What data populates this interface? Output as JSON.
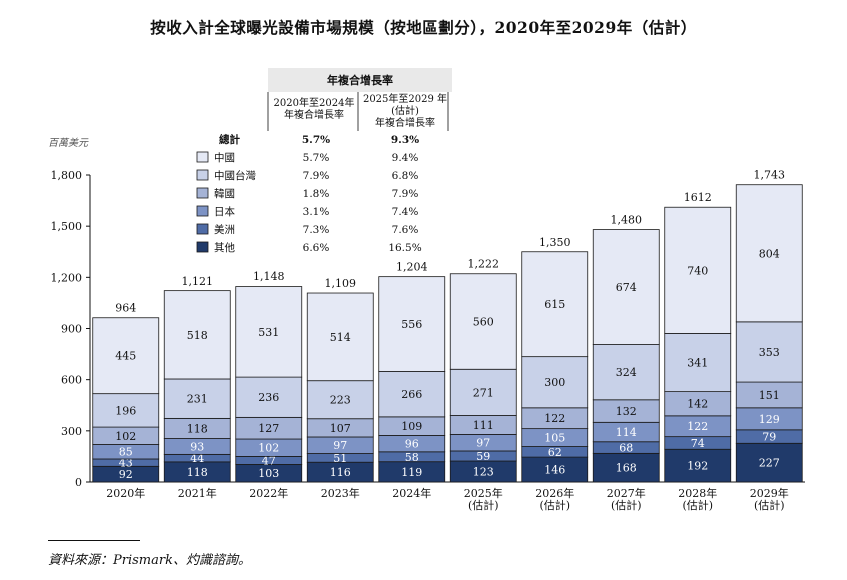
{
  "title": "按收入計全球曝光設備市場規模（按地區劃分），2020年至2029年（估計）",
  "source": "資料來源：Prismark、灼識諮詢。",
  "colors": {
    "china": "#e5e9f5",
    "taiwan": "#c8d1e8",
    "korea": "#a5b3d6",
    "japan": "#7d93c5",
    "usa": "#4f6ca6",
    "others": "#203a6a",
    "outline": "#1a1a1a",
    "light_text": "#ffffff",
    "dark_text": "#111111"
  },
  "chart_data": {
    "type": "bar",
    "stacked": true,
    "title": "按收入計全球曝光設備市場規模（按地區劃分），2020年至2029年（估計）",
    "unit_label": "百萬美元",
    "ylim": [
      0,
      1800
    ],
    "yticks": [
      "0",
      "300",
      "600",
      "900",
      "1,200",
      "1,500",
      "1,800"
    ],
    "ytick_values": [
      0,
      300,
      600,
      900,
      1200,
      1500,
      1800
    ],
    "categories": [
      [
        "2020年"
      ],
      [
        "2021年"
      ],
      [
        "2022年"
      ],
      [
        "2023年"
      ],
      [
        "2024年"
      ],
      [
        "2025年",
        "(估計)"
      ],
      [
        "2026年",
        "(估計)"
      ],
      [
        "2027年",
        "(估計)"
      ],
      [
        "2028年",
        "(估計)"
      ],
      [
        "2029年",
        "(估計)"
      ]
    ],
    "totals": [
      "964",
      "1,121",
      "1,148",
      "1,109",
      "1,204",
      "1,222",
      "1,350",
      "1,480",
      "1612",
      "1,743"
    ],
    "total_values": [
      964,
      1121,
      1148,
      1109,
      1204,
      1222,
      1350,
      1480,
      1612,
      1743
    ],
    "series": [
      {
        "key": "others",
        "name": "其他",
        "values": [
          92,
          118,
          103,
          116,
          119,
          123,
          146,
          168,
          192,
          227
        ]
      },
      {
        "key": "usa",
        "name": "美洲",
        "values": [
          43,
          44,
          47,
          51,
          58,
          59,
          62,
          68,
          74,
          79
        ]
      },
      {
        "key": "japan",
        "name": "日本",
        "values": [
          85,
          93,
          102,
          97,
          96,
          97,
          105,
          114,
          122,
          129
        ]
      },
      {
        "key": "korea",
        "name": "韓國",
        "values": [
          102,
          118,
          127,
          107,
          109,
          111,
          122,
          132,
          142,
          151
        ]
      },
      {
        "key": "taiwan",
        "name": "中國台灣",
        "values": [
          196,
          231,
          236,
          223,
          266,
          271,
          300,
          324,
          341,
          353
        ]
      },
      {
        "key": "china",
        "name": "中國",
        "values": [
          445,
          518,
          531,
          514,
          556,
          560,
          615,
          674,
          740,
          804
        ]
      }
    ],
    "cagr_table": {
      "header": "年複合增長率",
      "col1_header": [
        "2020年至2024年",
        "年複合增長率"
      ],
      "col2_header": [
        "2025年至2029 年",
        "(估計)",
        "年複合增長率"
      ],
      "rows": [
        {
          "label": "總計",
          "v1": "5.7%",
          "v2": "9.3%",
          "key": "total"
        },
        {
          "label": "中國",
          "v1": "5.7%",
          "v2": "9.4%",
          "key": "china"
        },
        {
          "label": "中國台灣",
          "v1": "7.9%",
          "v2": "6.8%",
          "key": "taiwan"
        },
        {
          "label": "韓國",
          "v1": "1.8%",
          "v2": "7.9%",
          "key": "korea"
        },
        {
          "label": "日本",
          "v1": "3.1%",
          "v2": "7.4%",
          "key": "japan"
        },
        {
          "label": "美洲",
          "v1": "7.3%",
          "v2": "7.6%",
          "key": "usa"
        },
        {
          "label": "其他",
          "v1": "6.6%",
          "v2": "16.5%",
          "key": "others"
        }
      ]
    }
  }
}
